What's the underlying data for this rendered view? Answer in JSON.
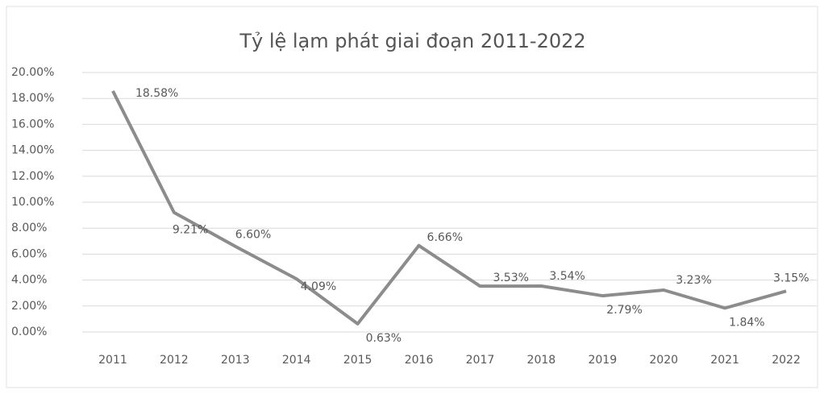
{
  "chart_data": {
    "type": "line",
    "title": "Tỷ lệ lạm phát giai đoạn 2011-2022",
    "categories": [
      "2011",
      "2012",
      "2013",
      "2014",
      "2015",
      "2016",
      "2017",
      "2018",
      "2019",
      "2020",
      "2021",
      "2022"
    ],
    "values": [
      18.58,
      9.21,
      6.6,
      4.09,
      0.63,
      6.66,
      3.53,
      3.54,
      2.79,
      3.23,
      1.84,
      3.15
    ],
    "value_labels": [
      "18.58%",
      "9.21%",
      "6.60%",
      "4.09%",
      "0.63%",
      "6.66%",
      "3.53%",
      "3.54%",
      "2.79%",
      "3.23%",
      "1.84%",
      "3.15%"
    ],
    "color": "#8c8c8c",
    "ylim": [
      0,
      20
    ],
    "yticks": [
      {
        "value": 0,
        "label": "0.00%"
      },
      {
        "value": 2,
        "label": "2.00%"
      },
      {
        "value": 4,
        "label": "4.00%"
      },
      {
        "value": 6,
        "label": "6.00%"
      },
      {
        "value": 8,
        "label": "8.00%"
      },
      {
        "value": 10,
        "label": "10.00%"
      },
      {
        "value": 12,
        "label": "12.00%"
      },
      {
        "value": 14,
        "label": "14.00%"
      },
      {
        "value": 16,
        "label": "16.00%"
      },
      {
        "value": 18,
        "label": "18.00%"
      },
      {
        "value": 20,
        "label": "20.00%"
      }
    ],
    "grid": true
  }
}
